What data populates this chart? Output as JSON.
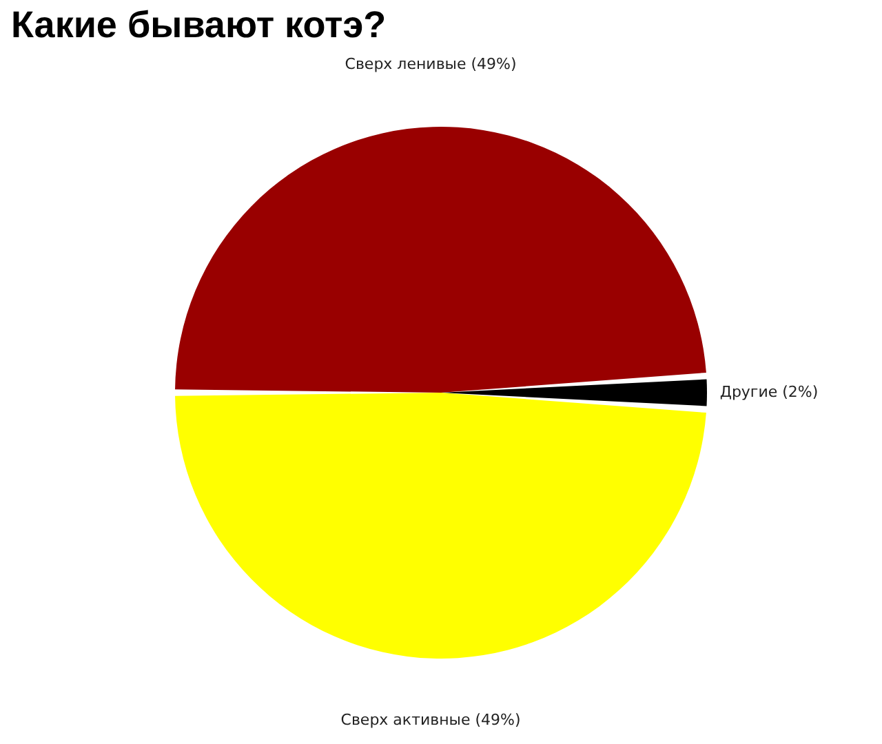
{
  "chart_data": {
    "type": "pie",
    "title": "Какие бывают котэ?",
    "categories": [
      "Сверх ленивые (49%)",
      "Другие (2%)",
      "Сверх активные (49%)"
    ],
    "values": [
      49,
      2,
      49
    ],
    "colors": [
      "#990000",
      "#000000",
      "#ffff00"
    ],
    "legend": false
  }
}
